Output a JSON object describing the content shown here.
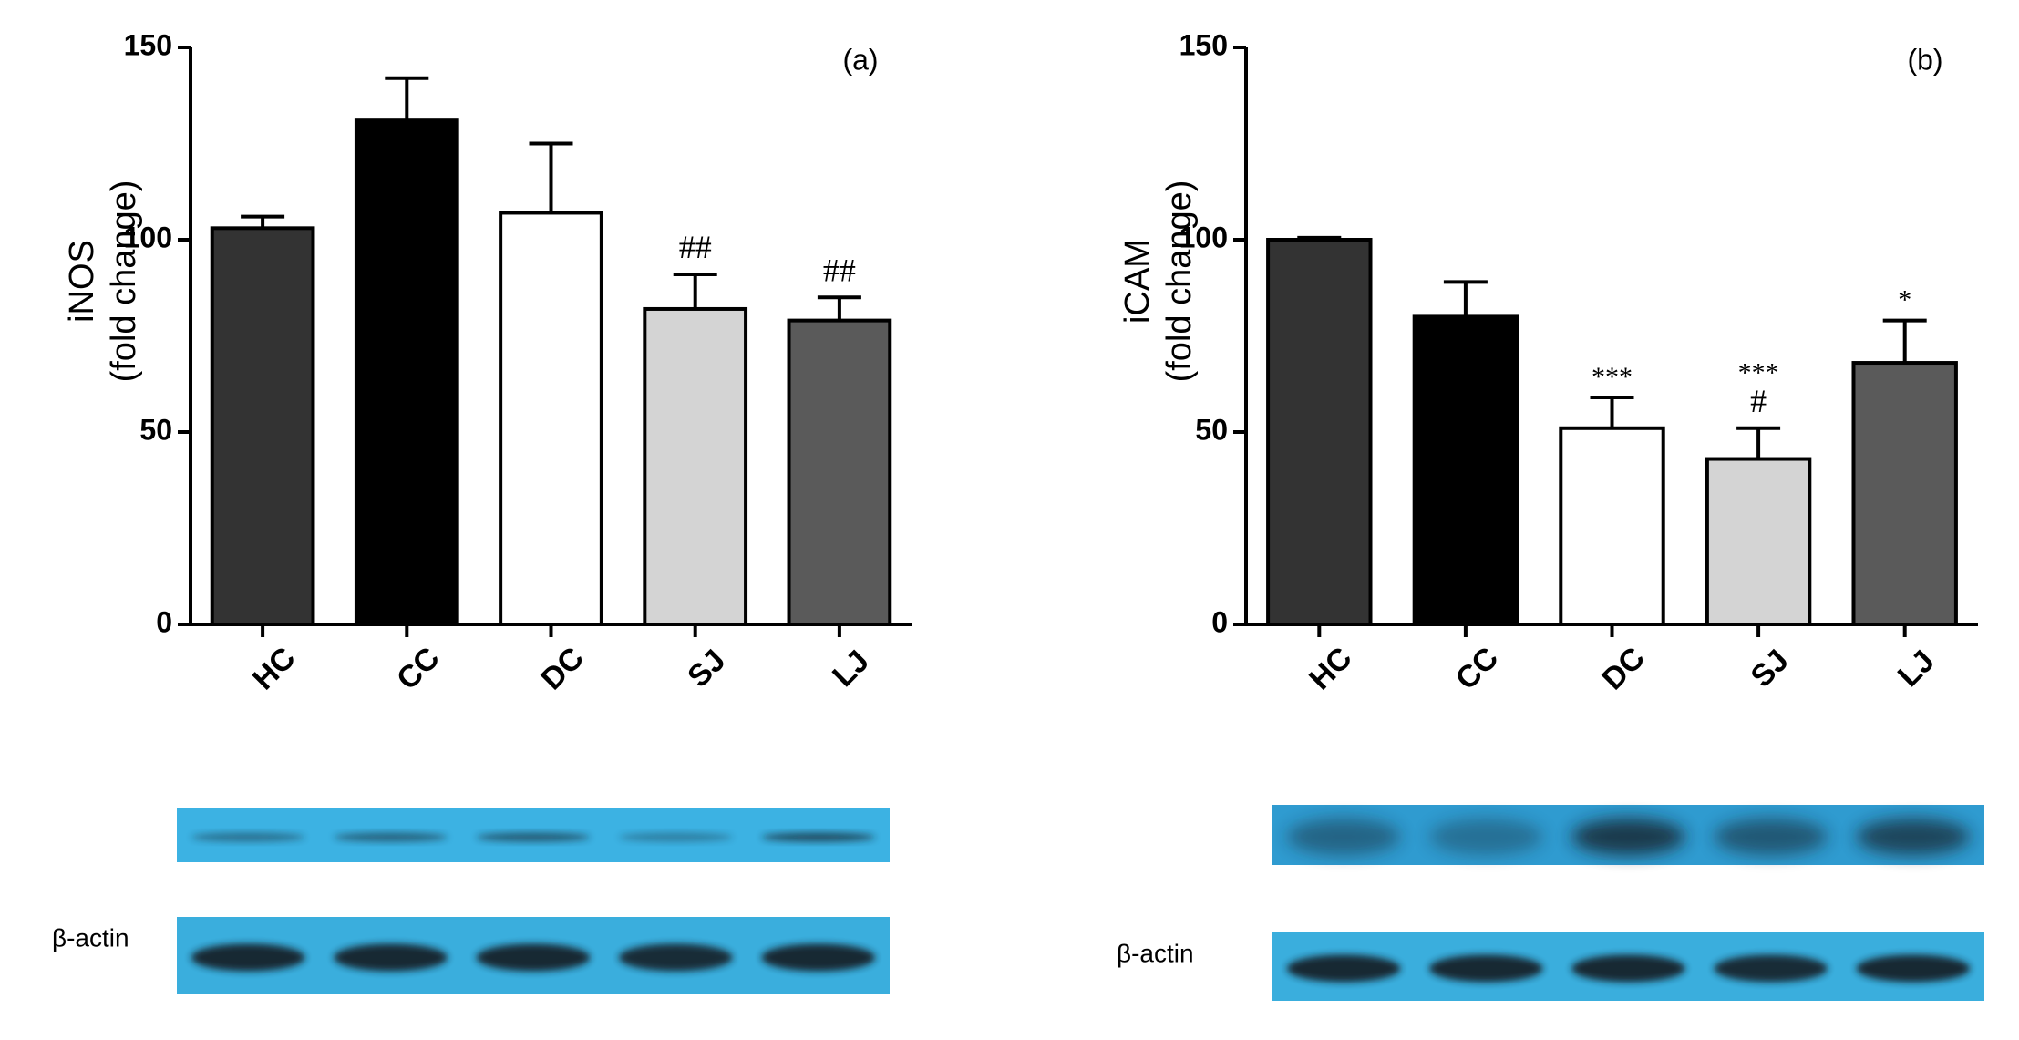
{
  "chart_data": [
    {
      "type": "bar",
      "panel_label": "(a)",
      "ylabel": [
        "iNOS",
        "(fold change)"
      ],
      "categories": [
        "HC",
        "CC",
        "DC",
        "SJ",
        "LJ"
      ],
      "values": [
        103,
        131,
        107,
        82,
        79
      ],
      "errors": [
        3,
        11,
        18,
        9,
        6
      ],
      "colors": [
        "#333333",
        "#000000",
        "#ffffff",
        "#d4d4d4",
        "#5a5a5a"
      ],
      "annotations": [
        [],
        [],
        [],
        [
          "##"
        ],
        [
          "##"
        ]
      ],
      "ylim": [
        0,
        150
      ],
      "yticks": [
        0,
        50,
        100,
        150
      ],
      "blot_label": "β-actin"
    },
    {
      "type": "bar",
      "panel_label": "(b)",
      "ylabel": [
        "iCAM",
        "(fold change)"
      ],
      "categories": [
        "HC",
        "CC",
        "DC",
        "SJ",
        "LJ"
      ],
      "values": [
        100,
        80,
        51,
        43,
        68
      ],
      "errors": [
        0.5,
        9,
        8,
        8,
        11
      ],
      "colors": [
        "#333333",
        "#000000",
        "#ffffff",
        "#d4d4d4",
        "#5a5a5a"
      ],
      "annotations": [
        [],
        [],
        [
          "***"
        ],
        [
          "***",
          "#"
        ],
        [
          "*"
        ]
      ],
      "ylim": [
        0,
        150
      ],
      "yticks": [
        0,
        50,
        100,
        150
      ],
      "blot_label": "β-actin"
    }
  ]
}
